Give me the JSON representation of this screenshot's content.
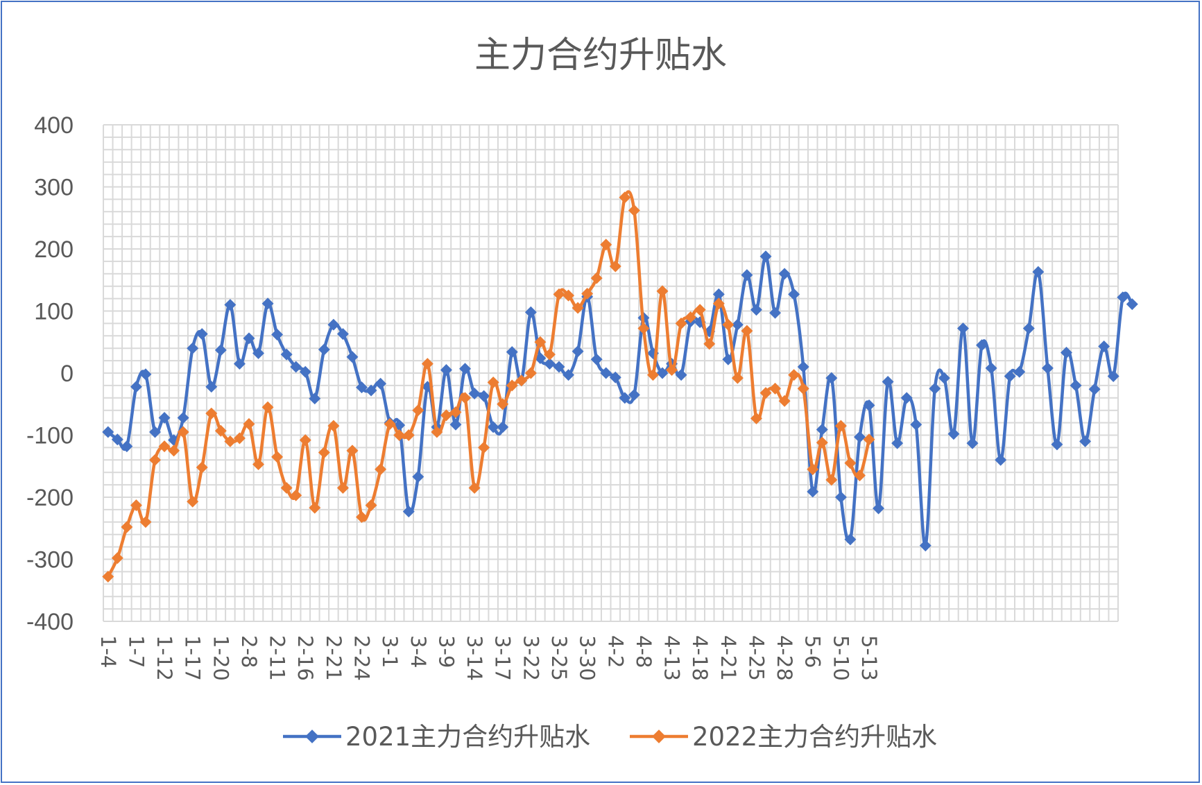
{
  "chart_data": {
    "type": "line",
    "title": "主力合约升贴水",
    "xlabel": "",
    "ylabel": "",
    "ylim": [
      -400,
      400
    ],
    "yticks": [
      400,
      300,
      200,
      100,
      0,
      -100,
      -200,
      -300,
      -400
    ],
    "grid": true,
    "legend_position": "bottom",
    "x_labels": [
      "1-4",
      "1-7",
      "1-12",
      "1-17",
      "1-20",
      "2-8",
      "2-11",
      "2-16",
      "2-21",
      "2-24",
      "3-1",
      "3-4",
      "3-9",
      "3-14",
      "3-17",
      "3-22",
      "3-25",
      "3-30",
      "4-2",
      "4-8",
      "4-13",
      "4-18",
      "4-21",
      "4-25",
      "4-28",
      "5-6",
      "5-10",
      "5-13"
    ],
    "series": [
      {
        "name": "2021主力合约升贴水",
        "color": "#4472c4",
        "values": [
          -95,
          -107,
          -118,
          -22,
          -2,
          -95,
          -72,
          -108,
          -72,
          40,
          63,
          -22,
          37,
          110,
          15,
          56,
          32,
          112,
          62,
          30,
          10,
          2,
          -41,
          38,
          78,
          63,
          26,
          -23,
          -28,
          -17,
          -80,
          -84,
          -223,
          -167,
          -22,
          -87,
          5,
          -83,
          7,
          -33,
          -37,
          -87,
          -87,
          34,
          -12,
          98,
          24,
          15,
          10,
          -3,
          35,
          123,
          22,
          0,
          -7,
          -40,
          -35,
          89,
          32,
          0,
          15,
          -3,
          83,
          82,
          67,
          127,
          22,
          78,
          158,
          102,
          188,
          97,
          160,
          127,
          10,
          -191,
          -91,
          -8,
          -200,
          -268,
          -103,
          -52,
          -218,
          -14,
          -113,
          -40,
          -83,
          -278,
          -25,
          -8,
          -98,
          72,
          -113,
          45,
          8,
          -140,
          -5,
          2,
          72,
          163,
          8,
          -115,
          33,
          -20,
          -110,
          -26,
          43,
          -5,
          122,
          111
        ]
      },
      {
        "name": "2022主力合约升贴水",
        "color": "#ed7d31",
        "values": [
          -328,
          -298,
          -248,
          -213,
          -240,
          -140,
          -118,
          -125,
          -95,
          -207,
          -152,
          -65,
          -93,
          -110,
          -105,
          -82,
          -147,
          -55,
          -135,
          -185,
          -197,
          -108,
          -217,
          -128,
          -85,
          -185,
          -125,
          -232,
          -213,
          -155,
          -82,
          -100,
          -100,
          -60,
          15,
          -95,
          -68,
          -63,
          -40,
          -185,
          -120,
          -15,
          -50,
          -20,
          -12,
          0,
          50,
          30,
          127,
          125,
          105,
          128,
          153,
          207,
          172,
          283,
          262,
          72,
          -3,
          132,
          5,
          80,
          90,
          102,
          47,
          112,
          78,
          -8,
          68,
          -73,
          -32,
          -25,
          -45,
          -3,
          -25,
          -155,
          -112,
          -172,
          -85,
          -145,
          -165,
          -107
        ]
      }
    ]
  }
}
